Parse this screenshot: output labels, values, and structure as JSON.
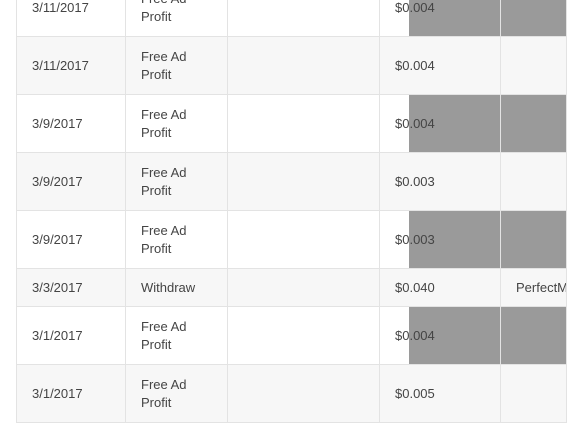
{
  "rows": [
    {
      "date": "3/11/2017",
      "type": "Free Ad Profit",
      "col3": "",
      "amount": "$0.004",
      "method": "",
      "masked": true
    },
    {
      "date": "3/11/2017",
      "type": "Free Ad Profit",
      "col3": "",
      "amount": "$0.004",
      "method": "",
      "masked": false
    },
    {
      "date": "3/9/2017",
      "type": "Free Ad Profit",
      "col3": "",
      "amount": "$0.004",
      "method": "",
      "masked": true
    },
    {
      "date": "3/9/2017",
      "type": "Free Ad Profit",
      "col3": "",
      "amount": "$0.003",
      "method": "",
      "masked": false
    },
    {
      "date": "3/9/2017",
      "type": "Free Ad Profit",
      "col3": "",
      "amount": "$0.003",
      "method": "",
      "masked": true
    },
    {
      "date": "3/3/2017",
      "type": "Withdraw",
      "col3": "",
      "amount": "$0.040",
      "method": "PerfectMoney",
      "masked": false
    },
    {
      "date": "3/1/2017",
      "type": "Free Ad Profit",
      "col3": "",
      "amount": "$0.004",
      "method": "",
      "masked": true
    },
    {
      "date": "3/1/2017",
      "type": "Free Ad Profit",
      "col3": "",
      "amount": "$0.005",
      "method": "",
      "masked": false
    }
  ],
  "colors": {
    "mask": "#9a9a9a",
    "row_alt": "#f7f7f7",
    "border": "#e3e3e3"
  }
}
